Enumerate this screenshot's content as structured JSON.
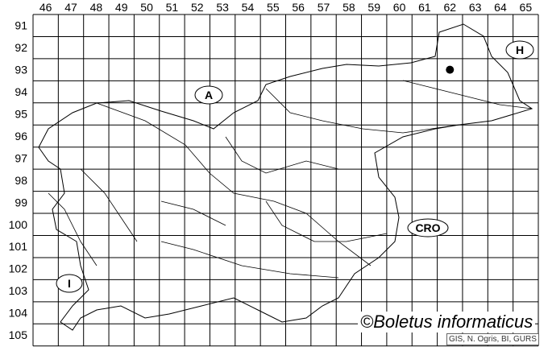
{
  "map": {
    "column_labels": [
      "46",
      "47",
      "48",
      "49",
      "50",
      "51",
      "52",
      "53",
      "54",
      "55",
      "56",
      "57",
      "58",
      "59",
      "60",
      "61",
      "62",
      "63",
      "64",
      "65"
    ],
    "row_labels": [
      "91",
      "92",
      "93",
      "94",
      "95",
      "96",
      "97",
      "98",
      "99",
      "100",
      "101",
      "102",
      "103",
      "104",
      "105"
    ],
    "country_labels": {
      "austria": "A",
      "hungary": "H",
      "croatia": "CRO",
      "italy": "I"
    },
    "occurrence_points": [
      {
        "column": "62",
        "row": "93"
      }
    ],
    "copyright": "©Boletus informaticus",
    "credit": "GIS, N. Ogris, BI, GURS"
  }
}
